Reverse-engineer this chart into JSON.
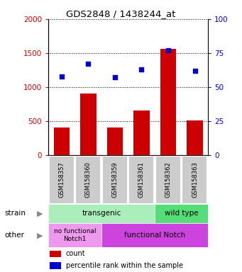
{
  "title": "GDS2848 / 1438244_at",
  "samples": [
    "GSM158357",
    "GSM158360",
    "GSM158359",
    "GSM158361",
    "GSM158362",
    "GSM158363"
  ],
  "counts": [
    400,
    900,
    400,
    650,
    1560,
    510
  ],
  "percentile_right": [
    58,
    67,
    57,
    63,
    77,
    62
  ],
  "ylim_left": [
    0,
    2000
  ],
  "ylim_right": [
    0,
    100
  ],
  "yticks_left": [
    0,
    500,
    1000,
    1500,
    2000
  ],
  "yticks_right": [
    0,
    25,
    50,
    75,
    100
  ],
  "bar_color": "#cc0000",
  "dot_color": "#0000cc",
  "strain_label_transgenic": "transgenic",
  "strain_label_wildtype": "wild type",
  "other_label_nofunctional": "no functional\nNotch1",
  "other_label_functional": "functional Notch",
  "strain_row_label": "strain",
  "other_row_label": "other",
  "legend_count": "count",
  "legend_percentile": "percentile rank within the sample",
  "tick_color_left": "#cc0000",
  "tick_color_right": "#0000cc",
  "bg_color": "#ffffff",
  "strain_transgenic_color": "#aaeebb",
  "strain_wildtype_color": "#55dd77",
  "other_nofunctional_color": "#ee99ee",
  "other_functional_color": "#cc44dd"
}
